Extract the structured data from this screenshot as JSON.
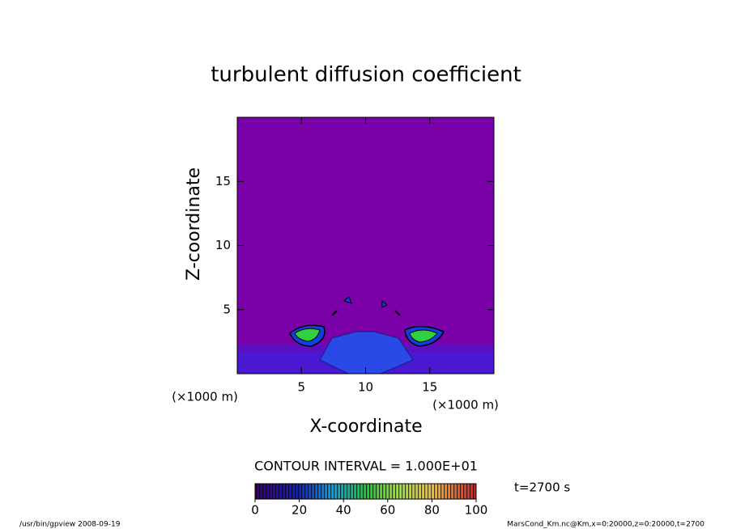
{
  "chart_data": {
    "type": "contour",
    "title": "turbulent diffusion coefficient",
    "xlabel": "X-coordinate",
    "ylabel": "Z-coordinate",
    "xunit": "(×1000 m)",
    "yunit": "(×1000 m)",
    "xlim": [
      0,
      20
    ],
    "ylim": [
      0,
      20
    ],
    "xticks": [
      5,
      10,
      15
    ],
    "yticks": [
      5,
      10,
      15
    ],
    "contour_interval": "CONTOUR INTERVAL = 1.000E+01",
    "time_label": "t=2700 s",
    "colorbar": {
      "lim": [
        0,
        100
      ],
      "ticks": [
        0,
        20,
        40,
        60,
        80,
        100
      ]
    },
    "footer_left": "/usr/bin/gpview  2008-09-19",
    "footer_right": "MarsCond_Km.nc@Km,x=0:20000,z=0:20000,t=2700"
  }
}
